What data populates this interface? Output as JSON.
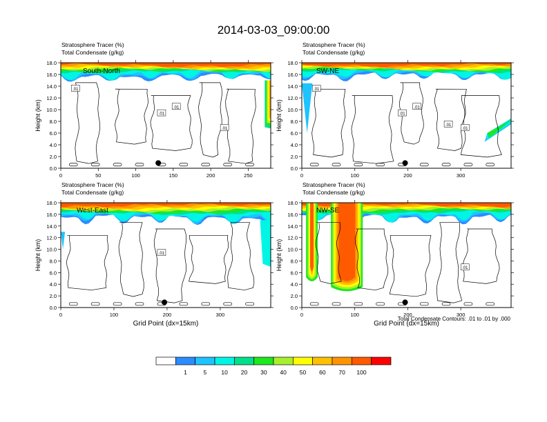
{
  "figure": {
    "title": "2014-03-03_09:00:00",
    "footnote": "Total Condensate Contours: .01 to .01 by .000"
  },
  "colorbar": {
    "levels": [
      "1",
      "5",
      "10",
      "20",
      "30",
      "40",
      "50",
      "60",
      "70",
      "100"
    ],
    "colors": [
      "#ffffff",
      "#2b8cff",
      "#1ec3ff",
      "#00f5e5",
      "#00e08a",
      "#1ee81e",
      "#a8f02e",
      "#ffff00",
      "#ffc000",
      "#ff9400",
      "#ff5a00",
      "#ff0000"
    ]
  },
  "chart_data": [
    {
      "type": "heatmap",
      "subtitle_1": "Stratosphere Tracer   (%)",
      "subtitle_2": "Total Condensate   (g/kg)",
      "label": "South-North",
      "ylabel": "Height (km)",
      "xlabel": "",
      "xlim": [
        0,
        280
      ],
      "ylim": [
        0,
        18
      ],
      "xticks": [
        0,
        50,
        100,
        150,
        200,
        250
      ],
      "yticks": [
        0,
        2,
        4,
        6,
        8,
        10,
        12,
        14,
        16,
        18
      ],
      "tracer_top_km": 16.1,
      "marker_x": 130,
      "contour_labels": [
        ".01",
        ".01",
        ".01",
        ".01"
      ]
    },
    {
      "type": "heatmap",
      "subtitle_1": "Stratosphere Tracer   (%)",
      "subtitle_2": "Total Condensate   (g/kg)",
      "label": "SW-NE",
      "ylabel": "Height (km)",
      "xlabel": "",
      "xlim": [
        0,
        395
      ],
      "ylim": [
        0,
        18
      ],
      "xticks": [
        0,
        100,
        200,
        300
      ],
      "yticks": [
        0,
        2,
        4,
        6,
        8,
        10,
        12,
        14,
        16,
        18
      ],
      "tracer_top_km": 16.3,
      "marker_x": 195,
      "contour_labels": [
        ".01",
        ".01",
        ".01",
        ".01",
        ".01"
      ]
    },
    {
      "type": "heatmap",
      "subtitle_1": "Stratosphere Tracer   (%)",
      "subtitle_2": "Total Condensate   (g/kg)",
      "label": "West-East",
      "ylabel": "Height (km)",
      "xlabel": "Grid Point (dx=15km)",
      "xlim": [
        0,
        395
      ],
      "ylim": [
        0,
        18
      ],
      "xticks": [
        0,
        100,
        200,
        300
      ],
      "yticks": [
        0,
        2,
        4,
        6,
        8,
        10,
        12,
        14,
        16,
        18
      ],
      "tracer_top_km": 15.8,
      "marker_x": 195,
      "contour_labels": [
        ".01"
      ]
    },
    {
      "type": "heatmap",
      "subtitle_1": "Stratosphere Tracer   (%)",
      "subtitle_2": "Total Condensate   (g/kg)",
      "label": "NW-SE",
      "ylabel": "Height (km)",
      "xlabel": "Grid Point (dx=15km)",
      "xlim": [
        0,
        395
      ],
      "ylim": [
        0,
        18
      ],
      "xticks": [
        0,
        100,
        200,
        300
      ],
      "yticks": [
        0,
        2,
        4,
        6,
        8,
        10,
        12,
        14,
        16,
        18
      ],
      "tracer_top_km": 16.0,
      "marker_x": 195,
      "contour_labels": [
        ".01"
      ]
    }
  ]
}
